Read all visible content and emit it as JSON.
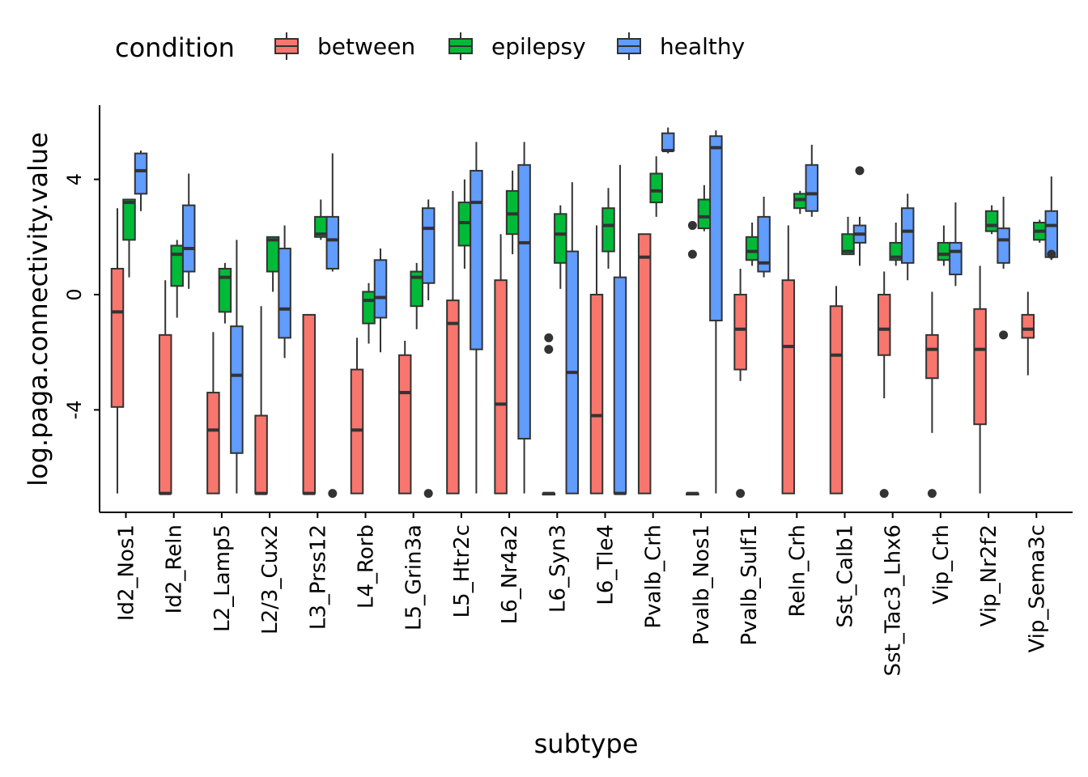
{
  "chart_data": {
    "type": "boxplot",
    "xlabel": "subtype",
    "ylabel": "log.paga.connectivity.value",
    "ylim": [
      -7.6,
      6.5
    ],
    "yticks": [
      -4,
      0,
      4
    ],
    "legend": {
      "title": "condition",
      "placement": "top-left",
      "entries": [
        "between",
        "epilepsy",
        "healthy"
      ]
    },
    "colors": {
      "between": "#F8766D",
      "epilepsy": "#00BA38",
      "healthy": "#619CFF"
    },
    "categories": [
      "Id2_Nos1",
      "Id2_Reln",
      "L2_Lamp5",
      "L2/3_Cux2",
      "L3_Prss12",
      "L4_Rorb",
      "L5_Grin3a",
      "L5_Htr2c",
      "L6_Nr4a2",
      "L6_Syn3",
      "L6_Tle4",
      "Pvalb_Crh",
      "Pvalb_Nos1",
      "Pvalb_Sulf1",
      "Reln_Crh",
      "Sst_Calb1",
      "Sst_Tac3_Lhx6",
      "Vip_Crh",
      "Vip_Nr2f2",
      "Vip_Sema3c"
    ],
    "series": [
      {
        "name": "between",
        "boxes": [
          {
            "category": "Id2_Nos1",
            "min": -6.9,
            "q1": -3.9,
            "median": -0.6,
            "q3": 0.9,
            "max": 3.0,
            "outliers": []
          },
          {
            "category": "Id2_Reln",
            "min": -6.9,
            "q1": -6.9,
            "median": -6.9,
            "q3": -1.4,
            "max": 0.5,
            "outliers": []
          },
          {
            "category": "L2_Lamp5",
            "min": -6.9,
            "q1": -6.9,
            "median": -4.7,
            "q3": -3.4,
            "max": -1.3,
            "outliers": []
          },
          {
            "category": "L2/3_Cux2",
            "min": -6.9,
            "q1": -6.9,
            "median": -6.9,
            "q3": -4.2,
            "max": -0.4,
            "outliers": []
          },
          {
            "category": "L3_Prss12",
            "min": -6.9,
            "q1": -6.9,
            "median": -6.9,
            "q3": -0.7,
            "max": -0.7,
            "outliers": []
          },
          {
            "category": "L4_Rorb",
            "min": -6.9,
            "q1": -6.9,
            "median": -4.7,
            "q3": -2.6,
            "max": -1.5,
            "outliers": []
          },
          {
            "category": "L5_Grin3a",
            "min": -6.9,
            "q1": -6.9,
            "median": -3.4,
            "q3": -2.1,
            "max": -1.6,
            "outliers": []
          },
          {
            "category": "L5_Htr2c",
            "min": -6.9,
            "q1": -6.9,
            "median": -1.0,
            "q3": -0.2,
            "max": 3.6,
            "outliers": []
          },
          {
            "category": "L6_Nr4a2",
            "min": -6.9,
            "q1": -6.9,
            "median": -3.8,
            "q3": 0.5,
            "max": 2.1,
            "outliers": []
          },
          {
            "category": "L6_Syn3",
            "min": -6.9,
            "q1": -6.9,
            "median": -6.9,
            "q3": -6.9,
            "max": -6.9,
            "outliers": [
              -1.5,
              -1.9
            ]
          },
          {
            "category": "L6_Tle4",
            "min": -6.9,
            "q1": -6.9,
            "median": -4.2,
            "q3": 0.0,
            "max": 2.4,
            "outliers": []
          },
          {
            "category": "Pvalb_Crh",
            "min": -6.9,
            "q1": -6.9,
            "median": 1.3,
            "q3": 2.1,
            "max": 2.1,
            "outliers": []
          },
          {
            "category": "Pvalb_Nos1",
            "min": -6.9,
            "q1": -6.9,
            "median": -6.9,
            "q3": -6.9,
            "max": -6.9,
            "outliers": [
              2.4,
              1.4
            ]
          },
          {
            "category": "Pvalb_Sulf1",
            "min": -3.0,
            "q1": -2.6,
            "median": -1.2,
            "q3": 0.0,
            "max": 0.9,
            "outliers": [
              -6.9
            ]
          },
          {
            "category": "Reln_Crh",
            "min": -6.9,
            "q1": -6.9,
            "median": -1.8,
            "q3": 0.5,
            "max": 2.4,
            "outliers": []
          },
          {
            "category": "Sst_Calb1",
            "min": -6.9,
            "q1": -6.9,
            "median": -2.1,
            "q3": -0.4,
            "max": 0.3,
            "outliers": []
          },
          {
            "category": "Sst_Tac3_Lhx6",
            "min": -3.6,
            "q1": -2.1,
            "median": -1.2,
            "q3": 0.0,
            "max": 0.8,
            "outliers": [
              -6.9
            ]
          },
          {
            "category": "Vip_Crh",
            "min": -4.8,
            "q1": -2.9,
            "median": -1.9,
            "q3": -1.4,
            "max": 0.1,
            "outliers": [
              -6.9
            ]
          },
          {
            "category": "Vip_Nr2f2",
            "min": -6.9,
            "q1": -4.5,
            "median": -1.9,
            "q3": -0.5,
            "max": 1.0,
            "outliers": []
          },
          {
            "category": "Vip_Sema3c",
            "min": -2.8,
            "q1": -1.5,
            "median": -1.2,
            "q3": -0.7,
            "max": 0.1,
            "outliers": []
          }
        ]
      },
      {
        "name": "epilepsy",
        "boxes": [
          {
            "category": "Id2_Nos1",
            "min": 0.6,
            "q1": 1.9,
            "median": 3.2,
            "q3": 3.3,
            "max": 3.3,
            "outliers": []
          },
          {
            "category": "Id2_Reln",
            "min": -0.8,
            "q1": 0.3,
            "median": 1.4,
            "q3": 1.7,
            "max": 1.9,
            "outliers": []
          },
          {
            "category": "L2_Lamp5",
            "min": -1.0,
            "q1": -0.6,
            "median": 0.6,
            "q3": 0.9,
            "max": 1.1,
            "outliers": []
          },
          {
            "category": "L2/3_Cux2",
            "min": 0.1,
            "q1": 0.8,
            "median": 1.9,
            "q3": 2.0,
            "max": 2.0,
            "outliers": []
          },
          {
            "category": "L3_Prss12",
            "min": 1.9,
            "q1": 2.0,
            "median": 2.1,
            "q3": 2.7,
            "max": 3.3,
            "outliers": []
          },
          {
            "category": "L4_Rorb",
            "min": -1.7,
            "q1": -1.0,
            "median": -0.2,
            "q3": 0.1,
            "max": 0.4,
            "outliers": []
          },
          {
            "category": "L5_Grin3a",
            "min": -1.2,
            "q1": -0.4,
            "median": 0.6,
            "q3": 0.8,
            "max": 1.1,
            "outliers": []
          },
          {
            "category": "L5_Htr2c",
            "min": 0.9,
            "q1": 1.7,
            "median": 2.5,
            "q3": 3.2,
            "max": 4.0,
            "outliers": []
          },
          {
            "category": "L6_Nr4a2",
            "min": 1.4,
            "q1": 2.1,
            "median": 2.8,
            "q3": 3.6,
            "max": 4.3,
            "outliers": []
          },
          {
            "category": "L6_Syn3",
            "min": 0.2,
            "q1": 1.1,
            "median": 2.1,
            "q3": 2.8,
            "max": 3.1,
            "outliers": []
          },
          {
            "category": "L6_Tle4",
            "min": 0.9,
            "q1": 1.5,
            "median": 2.4,
            "q3": 3.0,
            "max": 3.7,
            "outliers": []
          },
          {
            "category": "Pvalb_Crh",
            "min": 2.7,
            "q1": 3.2,
            "median": 3.6,
            "q3": 4.2,
            "max": 4.8,
            "outliers": []
          },
          {
            "category": "Pvalb_Nos1",
            "min": 2.2,
            "q1": 2.3,
            "median": 2.7,
            "q3": 3.3,
            "max": 3.8,
            "outliers": []
          },
          {
            "category": "Pvalb_Sulf1",
            "min": 1.0,
            "q1": 1.2,
            "median": 1.5,
            "q3": 2.0,
            "max": 2.5,
            "outliers": []
          },
          {
            "category": "Reln_Crh",
            "min": 2.8,
            "q1": 3.0,
            "median": 3.3,
            "q3": 3.5,
            "max": 3.6,
            "outliers": []
          },
          {
            "category": "Sst_Calb1",
            "min": 1.4,
            "q1": 1.4,
            "median": 1.5,
            "q3": 2.1,
            "max": 2.7,
            "outliers": []
          },
          {
            "category": "Sst_Tac3_Lhx6",
            "min": 1.0,
            "q1": 1.2,
            "median": 1.3,
            "q3": 1.8,
            "max": 2.5,
            "outliers": []
          },
          {
            "category": "Vip_Crh",
            "min": 1.0,
            "q1": 1.2,
            "median": 1.4,
            "q3": 1.8,
            "max": 2.4,
            "outliers": []
          },
          {
            "category": "Vip_Nr2f2",
            "min": 2.1,
            "q1": 2.2,
            "median": 2.4,
            "q3": 2.9,
            "max": 3.1,
            "outliers": []
          },
          {
            "category": "Vip_Sema3c",
            "min": 1.8,
            "q1": 1.9,
            "median": 2.2,
            "q3": 2.5,
            "max": 2.6,
            "outliers": []
          }
        ]
      },
      {
        "name": "healthy",
        "boxes": [
          {
            "category": "Id2_Nos1",
            "min": 2.9,
            "q1": 3.5,
            "median": 4.3,
            "q3": 4.9,
            "max": 5.0,
            "outliers": []
          },
          {
            "category": "Id2_Reln",
            "min": 0.2,
            "q1": 0.8,
            "median": 1.6,
            "q3": 3.1,
            "max": 4.2,
            "outliers": []
          },
          {
            "category": "L2_Lamp5",
            "min": -6.9,
            "q1": -5.5,
            "median": -2.8,
            "q3": -1.1,
            "max": 1.9,
            "outliers": []
          },
          {
            "category": "L2/3_Cux2",
            "min": -2.2,
            "q1": -1.5,
            "median": -0.5,
            "q3": 1.6,
            "max": 2.4,
            "outliers": []
          },
          {
            "category": "L3_Prss12",
            "min": 0.8,
            "q1": 0.9,
            "median": 1.9,
            "q3": 2.7,
            "max": 4.9,
            "outliers": [
              -6.9
            ]
          },
          {
            "category": "L4_Rorb",
            "min": -2.0,
            "q1": -0.8,
            "median": -0.1,
            "q3": 1.2,
            "max": 1.6,
            "outliers": []
          },
          {
            "category": "L5_Grin3a",
            "min": -0.2,
            "q1": 0.4,
            "median": 2.3,
            "q3": 3.0,
            "max": 3.3,
            "outliers": [
              -6.9
            ]
          },
          {
            "category": "L5_Htr2c",
            "min": -6.9,
            "q1": -1.9,
            "median": 3.2,
            "q3": 4.3,
            "max": 5.3,
            "outliers": []
          },
          {
            "category": "L6_Nr4a2",
            "min": -6.9,
            "q1": -5.0,
            "median": 1.8,
            "q3": 4.5,
            "max": 5.3,
            "outliers": []
          },
          {
            "category": "L6_Syn3",
            "min": -6.9,
            "q1": -6.9,
            "median": -2.7,
            "q3": 1.5,
            "max": 3.9,
            "outliers": []
          },
          {
            "category": "L6_Tle4",
            "min": -6.9,
            "q1": -6.9,
            "median": -6.9,
            "q3": 0.6,
            "max": 4.5,
            "outliers": []
          },
          {
            "category": "Pvalb_Crh",
            "min": 4.9,
            "q1": 5.0,
            "median": 5.0,
            "q3": 5.6,
            "max": 5.8,
            "outliers": []
          },
          {
            "category": "Pvalb_Nos1",
            "min": -6.9,
            "q1": -0.9,
            "median": 5.1,
            "q3": 5.5,
            "max": 5.7,
            "outliers": []
          },
          {
            "category": "Pvalb_Sulf1",
            "min": 0.6,
            "q1": 0.8,
            "median": 1.1,
            "q3": 2.7,
            "max": 3.4,
            "outliers": []
          },
          {
            "category": "Reln_Crh",
            "min": 2.7,
            "q1": 2.9,
            "median": 3.5,
            "q3": 4.5,
            "max": 5.2,
            "outliers": []
          },
          {
            "category": "Sst_Calb1",
            "min": 1.0,
            "q1": 1.8,
            "median": 2.1,
            "q3": 2.4,
            "max": 2.7,
            "outliers": [
              4.3
            ]
          },
          {
            "category": "Sst_Tac3_Lhx6",
            "min": 0.5,
            "q1": 1.1,
            "median": 2.2,
            "q3": 3.0,
            "max": 3.5,
            "outliers": []
          },
          {
            "category": "Vip_Crh",
            "min": 0.3,
            "q1": 0.7,
            "median": 1.5,
            "q3": 1.8,
            "max": 3.2,
            "outliers": []
          },
          {
            "category": "Vip_Nr2f2",
            "min": 0.9,
            "q1": 1.1,
            "median": 1.9,
            "q3": 2.3,
            "max": 3.4,
            "outliers": [
              -1.4
            ]
          },
          {
            "category": "Vip_Sema3c",
            "min": 1.2,
            "q1": 1.3,
            "median": 2.4,
            "q3": 2.9,
            "max": 4.1,
            "outliers": [
              1.4
            ]
          }
        ]
      }
    ]
  }
}
